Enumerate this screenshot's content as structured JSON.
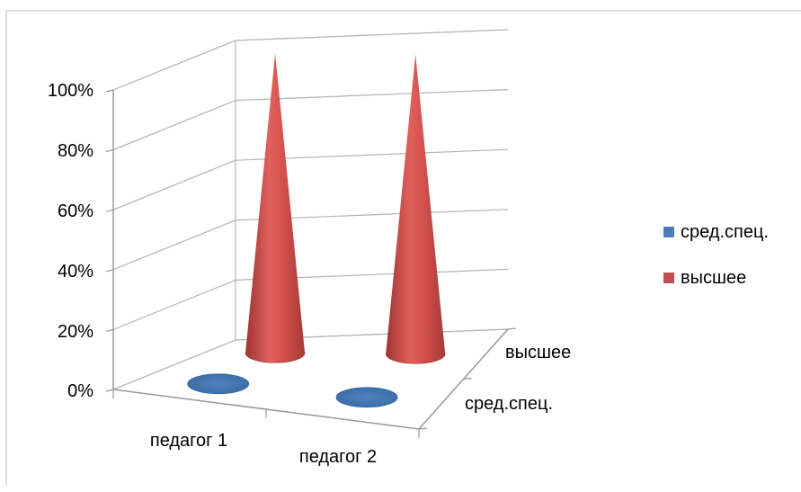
{
  "chart_data": {
    "type": "bar",
    "style": "3d-cone",
    "categories": [
      "педагог 1",
      "педагог 2"
    ],
    "depth_categories": [
      "сред.спец.",
      "высшее"
    ],
    "series": [
      {
        "name": "сред.спец.",
        "color": "#4a7ebb",
        "values": [
          0,
          0
        ]
      },
      {
        "name": "высшее",
        "color": "#c0504d",
        "values": [
          100,
          100
        ]
      }
    ],
    "ylim": [
      0,
      100
    ],
    "y_ticks": [
      "0%",
      "20%",
      "40%",
      "60%",
      "80%",
      "100%"
    ],
    "grid": true,
    "legend_position": "right"
  }
}
